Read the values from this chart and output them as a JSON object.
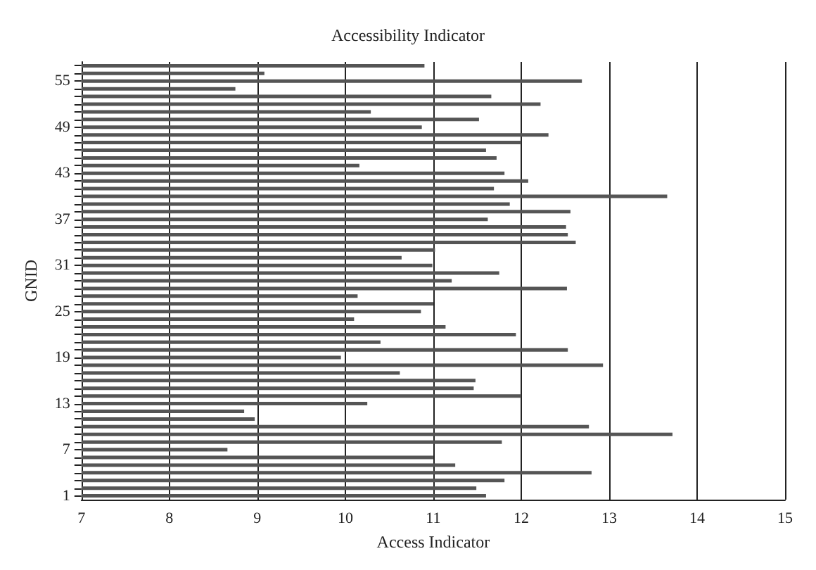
{
  "chart_data": {
    "type": "bar",
    "orientation": "horizontal",
    "title": "Accessibility Indicator",
    "xlabel": "Access Indicator",
    "ylabel": "GNID",
    "categories": [
      null,
      null,
      "55",
      null,
      null,
      null,
      null,
      null,
      "49",
      null,
      null,
      null,
      null,
      null,
      "43",
      null,
      null,
      null,
      null,
      null,
      "37",
      null,
      null,
      null,
      null,
      null,
      "31",
      null,
      null,
      null,
      null,
      null,
      "25",
      null,
      null,
      null,
      null,
      null,
      "19",
      null,
      null,
      null,
      null,
      null,
      "13",
      null,
      null,
      null,
      null,
      null,
      "7",
      null,
      null,
      null,
      null,
      null,
      "1"
    ],
    "values": [
      10.9,
      9.08,
      12.69,
      8.75,
      11.66,
      12.22,
      10.29,
      11.52,
      10.87,
      12.31,
      12.0,
      11.6,
      11.72,
      10.16,
      11.81,
      12.08,
      11.69,
      13.66,
      11.87,
      12.56,
      11.62,
      12.51,
      12.53,
      12.62,
      11.02,
      10.64,
      10.99,
      11.75,
      11.21,
      12.52,
      10.14,
      11.0,
      10.86,
      10.1,
      11.14,
      11.94,
      10.4,
      12.53,
      9.95,
      12.93,
      10.62,
      11.48,
      11.46,
      12.0,
      10.25,
      8.85,
      8.97,
      12.77,
      13.72,
      11.78,
      8.66,
      11.0,
      11.25,
      12.8,
      11.81,
      11.49,
      11.6
    ],
    "color": "#555555",
    "xlim": [
      7,
      15
    ],
    "xticks": [
      7,
      8,
      9,
      10,
      11,
      12,
      13,
      14,
      15
    ],
    "grid": "x"
  }
}
